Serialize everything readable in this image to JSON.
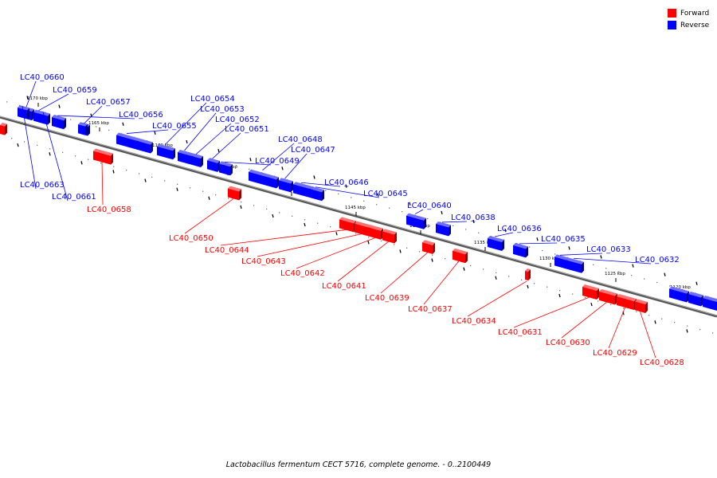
{
  "legend": {
    "items": [
      {
        "label": "Forward",
        "color": "#ff0000"
      },
      {
        "label": "Reverse",
        "color": "#0000ff"
      }
    ]
  },
  "footer": {
    "caption": "Lactobacillus fermentum CECT 5716, complete genome. - 0..2100449"
  },
  "colors": {
    "backbone": "#808080",
    "forward": "#ff0000",
    "reverse": "#0000ff"
  },
  "ticks": [
    "1170 kbp",
    "1165 kbp",
    "1160 kbp",
    "1155 kbp",
    "1150 kbp",
    "1145 kbp",
    "1140 kbp",
    "1135 kbp",
    "1130 kbp",
    "1125 kbp",
    "1120 kbp"
  ],
  "genes": [
    {
      "label": "LC40_0660",
      "strand": "reverse"
    },
    {
      "label": "LC40_0659",
      "strand": "reverse"
    },
    {
      "label": "LC40_0657",
      "strand": "reverse"
    },
    {
      "label": "LC40_0656",
      "strand": "reverse"
    },
    {
      "label": "LC40_0655",
      "strand": "reverse"
    },
    {
      "label": "LC40_0654",
      "strand": "reverse"
    },
    {
      "label": "LC40_0653",
      "strand": "reverse"
    },
    {
      "label": "LC40_0652",
      "strand": "reverse"
    },
    {
      "label": "LC40_0651",
      "strand": "reverse"
    },
    {
      "label": "LC40_0648",
      "strand": "reverse"
    },
    {
      "label": "LC40_0647",
      "strand": "reverse"
    },
    {
      "label": "LC40_0649",
      "strand": "reverse"
    },
    {
      "label": "LC40_0646",
      "strand": "reverse"
    },
    {
      "label": "LC40_0645",
      "strand": "reverse"
    },
    {
      "label": "LC40_0640",
      "strand": "reverse"
    },
    {
      "label": "LC40_0638",
      "strand": "reverse"
    },
    {
      "label": "LC40_0636",
      "strand": "reverse"
    },
    {
      "label": "LC40_0635",
      "strand": "reverse"
    },
    {
      "label": "LC40_0633",
      "strand": "reverse"
    },
    {
      "label": "LC40_0632",
      "strand": "reverse"
    },
    {
      "label": "LC40_0663",
      "strand": "reverse"
    },
    {
      "label": "LC40_0661",
      "strand": "reverse"
    },
    {
      "label": "LC40_0658",
      "strand": "forward"
    },
    {
      "label": "LC40_0650",
      "strand": "forward"
    },
    {
      "label": "LC40_0644",
      "strand": "forward"
    },
    {
      "label": "LC40_0643",
      "strand": "forward"
    },
    {
      "label": "LC40_0642",
      "strand": "forward"
    },
    {
      "label": "LC40_0641",
      "strand": "forward"
    },
    {
      "label": "LC40_0639",
      "strand": "forward"
    },
    {
      "label": "LC40_0637",
      "strand": "forward"
    },
    {
      "label": "LC40_0634",
      "strand": "forward"
    },
    {
      "label": "LC40_0631",
      "strand": "forward"
    },
    {
      "label": "LC40_0630",
      "strand": "forward"
    },
    {
      "label": "LC40_0629",
      "strand": "forward"
    },
    {
      "label": "LC40_0628",
      "strand": "forward"
    }
  ]
}
